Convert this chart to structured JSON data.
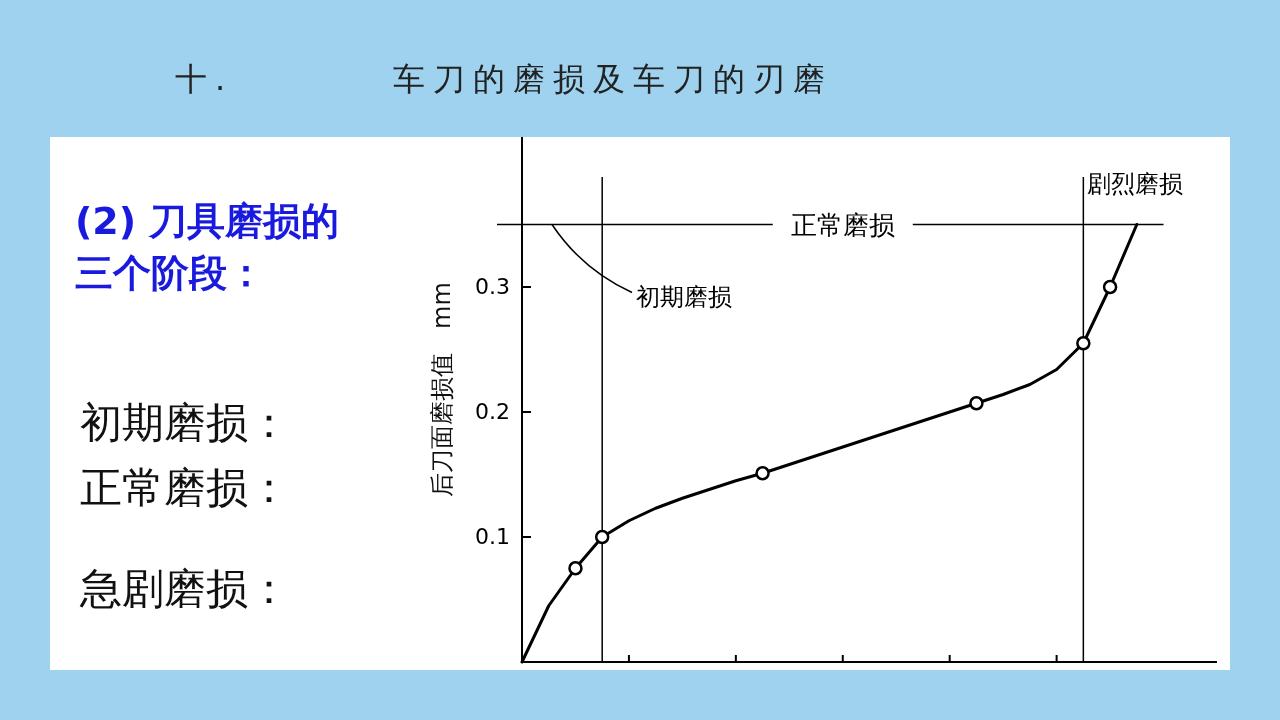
{
  "chart_data": {
    "type": "line",
    "title": "十.　　　　车刀的磨损及车刀的刃磨",
    "ylabel": "后刀面磨损值　mm",
    "categories": [
      null,
      null,
      null,
      null,
      null,
      null,
      null,
      null,
      null,
      null,
      null,
      null,
      null,
      null,
      null,
      null,
      null,
      null,
      null,
      null,
      null,
      null,
      null,
      null
    ],
    "ylim": [
      0,
      0.42
    ],
    "yticks": [
      {
        "value": 0.1,
        "label": "0.1"
      },
      {
        "value": 0.2,
        "label": "0.2"
      },
      {
        "value": 0.3,
        "label": "0.3"
      }
    ],
    "tick_labels": "y",
    "series": [
      {
        "color": "#000000",
        "marker": "none",
        "values": [
          0,
          0.045,
          0.075,
          0.1,
          0.113,
          0.123,
          0.131,
          0.138,
          0.145,
          0.151,
          0.158,
          0.165,
          0.172,
          0.179,
          0.186,
          0.193,
          0.2,
          0.207,
          0.214,
          0.222,
          0.234,
          0.255,
          0.3,
          0.35
        ]
      },
      {
        "type": "scatter",
        "color": "#000000",
        "marker": "circle",
        "values": [
          null,
          null,
          0.075,
          0.1,
          null,
          null,
          null,
          null,
          null,
          0.151,
          null,
          null,
          null,
          null,
          null,
          null,
          null,
          0.207,
          null,
          null,
          null,
          0.255,
          0.3,
          null
        ]
      }
    ],
    "ref_lines": [
      {
        "axis": "y",
        "value": 0.35,
        "label": "正常磨损"
      }
    ],
    "annotations": [
      "(2) 刀具磨损的三个阶段：",
      "初期磨损：",
      "正常磨损：",
      "急剧磨损：",
      "初期磨损",
      "剧烈磨损"
    ]
  }
}
